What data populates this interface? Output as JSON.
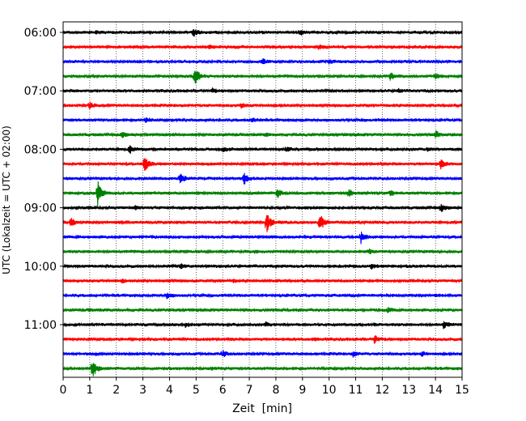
{
  "chart_data": {
    "type": "line",
    "title": "",
    "xlabel": "Zeit  [min]",
    "ylabel": "UTC (Lokalzeit = UTC + 02:00)",
    "xlim": [
      0,
      15
    ],
    "x_ticks": [
      "0",
      "1",
      "2",
      "3",
      "4",
      "5",
      "6",
      "7",
      "8",
      "9",
      "10",
      "11",
      "12",
      "13",
      "14",
      "15"
    ],
    "grid": "vertical dotted at each minute",
    "hour_labels": [
      "06:00",
      "07:00",
      "08:00",
      "09:00",
      "10:00",
      "11:00"
    ],
    "line_colors": [
      "#000000",
      "#ff0000",
      "#0000ff",
      "#008000"
    ],
    "traces": [
      {
        "start": "06:00",
        "events": [
          [
            1.25,
            0.15
          ],
          [
            4.9,
            0.35
          ],
          [
            8.9,
            0.25
          ]
        ]
      },
      {
        "start": "06:15",
        "events": [
          [
            5.5,
            0.2
          ],
          [
            9.6,
            0.2
          ]
        ]
      },
      {
        "start": "06:30",
        "events": [
          [
            7.5,
            0.25
          ],
          [
            10.0,
            0.25
          ]
        ]
      },
      {
        "start": "06:45",
        "events": [
          [
            4.95,
            1.0
          ],
          [
            12.3,
            0.4
          ],
          [
            14.0,
            0.3
          ]
        ]
      },
      {
        "start": "07:00",
        "events": [
          [
            5.6,
            0.2
          ],
          [
            12.6,
            0.15
          ]
        ]
      },
      {
        "start": "07:15",
        "events": [
          [
            1.0,
            0.3
          ],
          [
            6.7,
            0.2
          ]
        ]
      },
      {
        "start": "07:30",
        "events": [
          [
            3.1,
            0.25
          ],
          [
            7.1,
            0.2
          ]
        ]
      },
      {
        "start": "07:45",
        "events": [
          [
            2.2,
            0.3
          ],
          [
            14.0,
            0.45
          ],
          [
            7.6,
            0.15
          ]
        ]
      },
      {
        "start": "08:00",
        "events": [
          [
            2.5,
            0.4
          ],
          [
            6.0,
            0.25
          ],
          [
            8.4,
            0.2
          ],
          [
            13.7,
            0.2
          ]
        ]
      },
      {
        "start": "08:15",
        "events": [
          [
            3.05,
            0.8
          ],
          [
            14.2,
            0.45
          ]
        ]
      },
      {
        "start": "08:30",
        "events": [
          [
            4.4,
            0.6
          ],
          [
            6.8,
            0.65
          ]
        ]
      },
      {
        "start": "08:45",
        "events": [
          [
            1.3,
            1.3
          ],
          [
            8.05,
            0.45
          ],
          [
            10.75,
            0.4
          ],
          [
            12.3,
            0.25
          ]
        ]
      },
      {
        "start": "09:00",
        "events": [
          [
            14.2,
            0.45
          ],
          [
            2.7,
            0.2
          ]
        ]
      },
      {
        "start": "09:15",
        "events": [
          [
            0.3,
            0.4
          ],
          [
            7.65,
            1.1
          ],
          [
            9.65,
            1.0
          ]
        ]
      },
      {
        "start": "09:30",
        "events": [
          [
            11.2,
            0.6
          ]
        ]
      },
      {
        "start": "09:45",
        "events": [
          [
            11.5,
            0.2
          ],
          [
            7.2,
            0.1
          ]
        ]
      },
      {
        "start": "10:00",
        "events": [
          [
            4.4,
            0.25
          ],
          [
            11.6,
            0.25
          ],
          [
            8.0,
            0.1
          ]
        ]
      },
      {
        "start": "10:15",
        "events": [
          [
            2.2,
            0.2
          ],
          [
            6.4,
            0.1
          ]
        ]
      },
      {
        "start": "10:30",
        "events": [
          [
            3.9,
            0.25
          ],
          [
            14.0,
            0.1
          ]
        ]
      },
      {
        "start": "10:45",
        "events": [
          [
            12.2,
            0.2
          ],
          [
            1.0,
            0.1
          ]
        ]
      },
      {
        "start": "11:00",
        "events": [
          [
            4.6,
            0.25
          ],
          [
            7.6,
            0.2
          ],
          [
            14.3,
            0.35
          ],
          [
            11.7,
            0.1
          ]
        ]
      },
      {
        "start": "11:15",
        "events": [
          [
            11.7,
            0.4
          ],
          [
            9.4,
            0.1
          ]
        ]
      },
      {
        "start": "11:30",
        "events": [
          [
            6.0,
            0.3
          ],
          [
            10.9,
            0.3
          ],
          [
            13.5,
            0.2
          ]
        ]
      },
      {
        "start": "11:45",
        "events": [
          [
            1.1,
            1.0
          ],
          [
            5.6,
            0.1
          ]
        ]
      }
    ]
  }
}
